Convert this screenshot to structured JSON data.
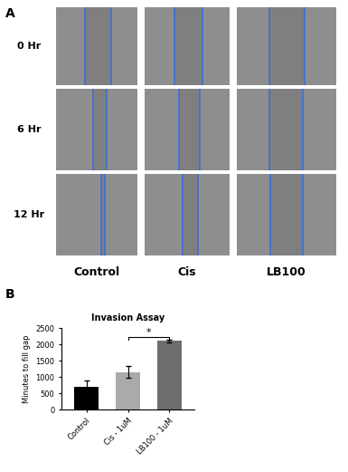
{
  "panel_labels": [
    "A",
    "B"
  ],
  "image_grid": {
    "row_labels": [
      "0 Hr",
      "6 Hr",
      "12 Hr"
    ],
    "column_labels": [
      "Control",
      "Cis",
      "LB100"
    ]
  },
  "chart_data": {
    "type": "bar",
    "title": "Invasion Assay",
    "y_label": "Minutes to fill gap",
    "categories": [
      "Control",
      "Cis - 1uM",
      "LB100 - 1uM"
    ],
    "values": [
      700,
      1150,
      2100
    ],
    "errors": [
      200,
      180,
      40
    ],
    "colors": [
      "#000000",
      "#aaaaaa",
      "#6e6e6e"
    ],
    "ylim": [
      0,
      2500
    ],
    "yticks": [
      0,
      500,
      1000,
      1500,
      2000,
      2500
    ],
    "annotations": [
      {
        "text": "*",
        "from": "Cis - 1uM",
        "to": "LB100 - 1uM"
      }
    ]
  }
}
